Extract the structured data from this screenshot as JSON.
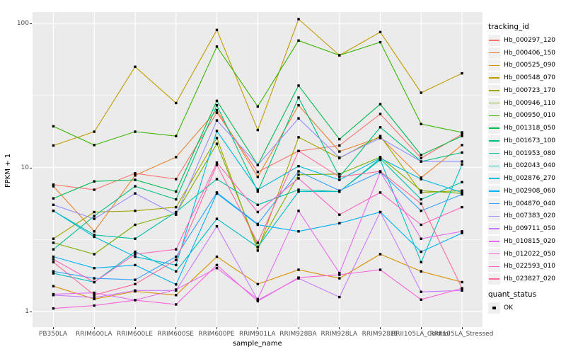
{
  "chart_data": {
    "type": "line",
    "title": "",
    "xlabel": "sample_name",
    "ylabel": "FPKM + 1",
    "y_scale": "log10",
    "y_ticks": [
      1,
      10,
      100
    ],
    "y_minor_ticks": [
      3.162,
      31.62
    ],
    "ylim": [
      0.93,
      130
    ],
    "grid": "on",
    "legend_position": "right",
    "legend_title": "tracking_id",
    "point_legend": {
      "title": "quant_status",
      "label": "OK",
      "shape": "square",
      "color": "#000000"
    },
    "categories": [
      "PB350LA",
      "RRIM600LA",
      "RRIM600LE",
      "RRIM600SE",
      "RRIM600PE",
      "RRIM901LA",
      "RRIM928BA",
      "RRIM928LA",
      "RRIM928LE",
      "RRII105LA_Control",
      "RRII105LA_Stressed"
    ],
    "series": [
      {
        "name": "Hb_000297_120",
        "color": "#F8766D",
        "values": [
          7.6,
          7.0,
          9.1,
          8.3,
          24,
          9.3,
          13,
          14.2,
          23.5,
          11.6,
          17
        ]
      },
      {
        "name": "Hb_000406_150",
        "color": "#EA8331",
        "values": [
          7.4,
          3.6,
          8.8,
          11.8,
          25,
          8.6,
          27,
          12.9,
          16.2,
          8.5,
          14.3
        ]
      },
      {
        "name": "Hb_000525_090",
        "color": "#D89000",
        "values": [
          1.5,
          1.22,
          1.38,
          1.3,
          2.4,
          1.55,
          1.95,
          1.7,
          2.5,
          1.9,
          1.6
        ]
      },
      {
        "name": "Hb_000548_070",
        "color": "#C09B00",
        "values": [
          14.2,
          17.7,
          50,
          28,
          90,
          18.2,
          107,
          60,
          87,
          33,
          45
        ]
      },
      {
        "name": "Hb_000723_170",
        "color": "#A3A500",
        "values": [
          3.2,
          4.9,
          5.0,
          5.3,
          16,
          2.65,
          16.2,
          11.6,
          16.5,
          6.7,
          6.9
        ]
      },
      {
        "name": "Hb_000946_110",
        "color": "#7CAE00",
        "values": [
          3.0,
          2.5,
          4.0,
          4.8,
          14.6,
          2.8,
          8.9,
          9.0,
          11.8,
          6.9,
          6.6
        ]
      },
      {
        "name": "Hb_000950_010",
        "color": "#39B600",
        "values": [
          19.3,
          14.3,
          17.7,
          16.5,
          69,
          26.5,
          76,
          60,
          74,
          20,
          17.5
        ]
      },
      {
        "name": "Hb_001318_050",
        "color": "#00BB4E",
        "values": [
          6.1,
          8.0,
          8.2,
          6.8,
          29,
          10.4,
          37,
          15.7,
          27.5,
          12.2,
          16.5
        ]
      },
      {
        "name": "Hb_001673_100",
        "color": "#00BF7D",
        "values": [
          2.7,
          4.6,
          7.4,
          6.0,
          27,
          6.8,
          30.5,
          8.6,
          19,
          11.0,
          12.7
        ]
      },
      {
        "name": "Hb_001953_080",
        "color": "#00C1A3",
        "values": [
          5.0,
          3.4,
          3.2,
          4.9,
          8.3,
          5.5,
          7.0,
          6.8,
          11.5,
          6.0,
          7.9
        ]
      },
      {
        "name": "Hb_002043_040",
        "color": "#00BFC4",
        "values": [
          1.84,
          1.6,
          2.6,
          1.9,
          4.4,
          2.8,
          6.8,
          6.8,
          11.3,
          2.2,
          10.5
        ]
      },
      {
        "name": "Hb_002876_270",
        "color": "#00BAE0",
        "values": [
          5.0,
          3.3,
          2.4,
          2.1,
          17.9,
          7.0,
          10.2,
          8.2,
          11.6,
          8.3,
          6.7
        ]
      },
      {
        "name": "Hb_002908_060",
        "color": "#00B0F6",
        "values": [
          2.4,
          2.0,
          2.1,
          1.54,
          6.6,
          4.0,
          3.6,
          4.1,
          4.9,
          2.6,
          3.5
        ]
      },
      {
        "name": "Hb_004870_040",
        "color": "#35A2FF",
        "values": [
          1.9,
          1.7,
          1.66,
          2.4,
          6.7,
          4.05,
          9.4,
          6.9,
          9.3,
          5.0,
          6.5
        ]
      },
      {
        "name": "Hb_007383_020",
        "color": "#9590FF",
        "values": [
          5.5,
          4.4,
          6.6,
          4.7,
          21.2,
          10.4,
          21.9,
          11.7,
          16.0,
          11.0,
          11.0
        ]
      },
      {
        "name": "Hb_009711_050",
        "color": "#C77CFF",
        "values": [
          1.3,
          1.25,
          1.4,
          1.4,
          3.9,
          1.2,
          1.7,
          1.26,
          4.9,
          1.37,
          1.4
        ]
      },
      {
        "name": "Hb_010815_020",
        "color": "#E76BF3",
        "values": [
          1.32,
          1.35,
          1.2,
          1.42,
          2.0,
          1.22,
          5.0,
          1.85,
          9.3,
          3.2,
          3.6
        ]
      },
      {
        "name": "Hb_012022_050",
        "color": "#FA62DB",
        "values": [
          1.05,
          1.1,
          1.2,
          1.12,
          2.1,
          1.18,
          1.72,
          1.8,
          1.95,
          1.21,
          1.45
        ]
      },
      {
        "name": "Hb_022593_010",
        "color": "#FF62BC",
        "values": [
          2.3,
          1.6,
          2.5,
          2.7,
          10.8,
          4.9,
          8.4,
          4.7,
          6.7,
          4.0,
          5.3
        ]
      },
      {
        "name": "Hb_023827_020",
        "color": "#FF6A98",
        "values": [
          2.2,
          1.3,
          1.55,
          2.28,
          10.4,
          3.0,
          13.0,
          8.6,
          9.4,
          5.6,
          1.45
        ]
      }
    ]
  },
  "theme": {
    "panel_bg": "#EBEBEB",
    "grid_color": "#FFFFFF",
    "tick_text_color": "#4D4D4D",
    "point_color": "#000000",
    "legend_key_bg": "#F0F0F0"
  }
}
